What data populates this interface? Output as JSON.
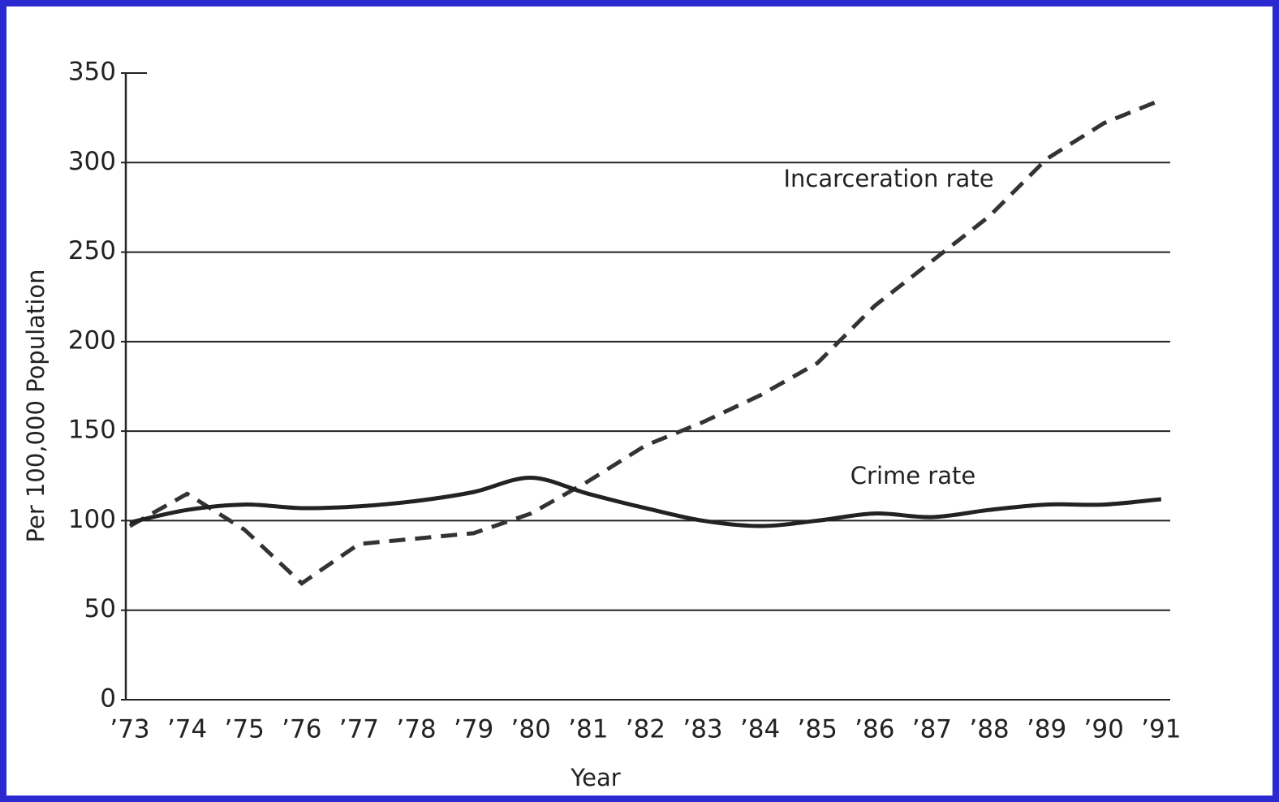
{
  "chart_data": {
    "type": "line",
    "x_label": "Year",
    "y_label": "Per 100,000 Population",
    "categories": [
      "’73",
      "’74",
      "’75",
      "’76",
      "’77",
      "’78",
      "’79",
      "’80",
      "’81",
      "’82",
      "’83",
      "’84",
      "’85",
      "’86",
      "’87",
      "’88",
      "’89",
      "’90",
      "’91"
    ],
    "series": [
      {
        "name": "Incarceration rate",
        "color": "#333333",
        "dash": true,
        "values": [
          97,
          115,
          95,
          65,
          87,
          90,
          93,
          104,
          122,
          142,
          155,
          170,
          188,
          220,
          245,
          270,
          302,
          322,
          335
        ]
      },
      {
        "name": "Crime rate",
        "color": "#222222",
        "dash": false,
        "values": [
          99,
          106,
          109,
          107,
          108,
          111,
          116,
          124,
          115,
          107,
          100,
          97,
          100,
          104,
          102,
          106,
          109,
          109,
          112
        ]
      }
    ],
    "ylim": [
      0,
      350
    ],
    "yticks": [
      0,
      50,
      100,
      150,
      200,
      250,
      300,
      350
    ],
    "grid": true
  }
}
